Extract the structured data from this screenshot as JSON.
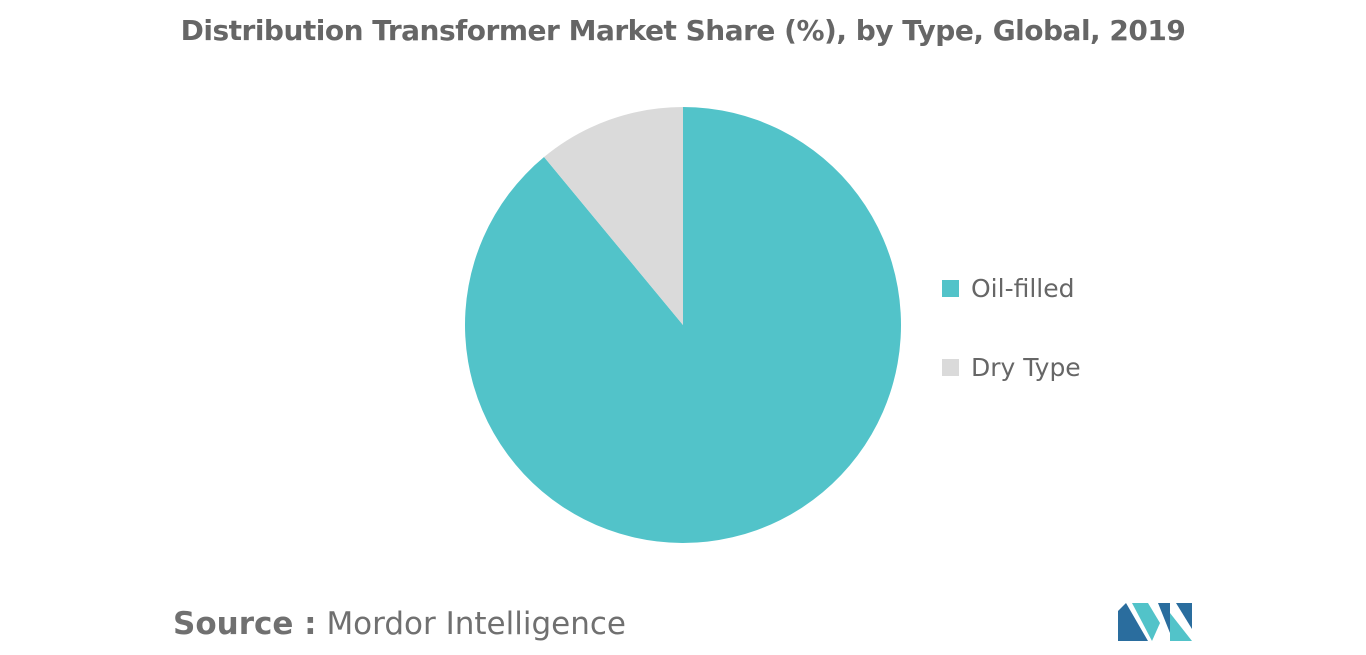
{
  "chart_data": {
    "type": "pie",
    "title": "Distribution Transformer Market Share (%), by Type, Global, 2019",
    "slices": [
      {
        "label": "Oil-filled",
        "value": 89,
        "color": "#52c3c9"
      },
      {
        "label": "Dry Type",
        "value": 11,
        "color": "#dadada"
      }
    ],
    "start_angle_deg": 0,
    "direction": "clockwise",
    "legend_position": "right"
  },
  "source": {
    "prefix": "Source :",
    "text": "Mordor Intelligence"
  },
  "logo": {
    "name": "mordor-intelligence-logo",
    "colors": [
      "#2a6d9e",
      "#52c3c9"
    ]
  }
}
